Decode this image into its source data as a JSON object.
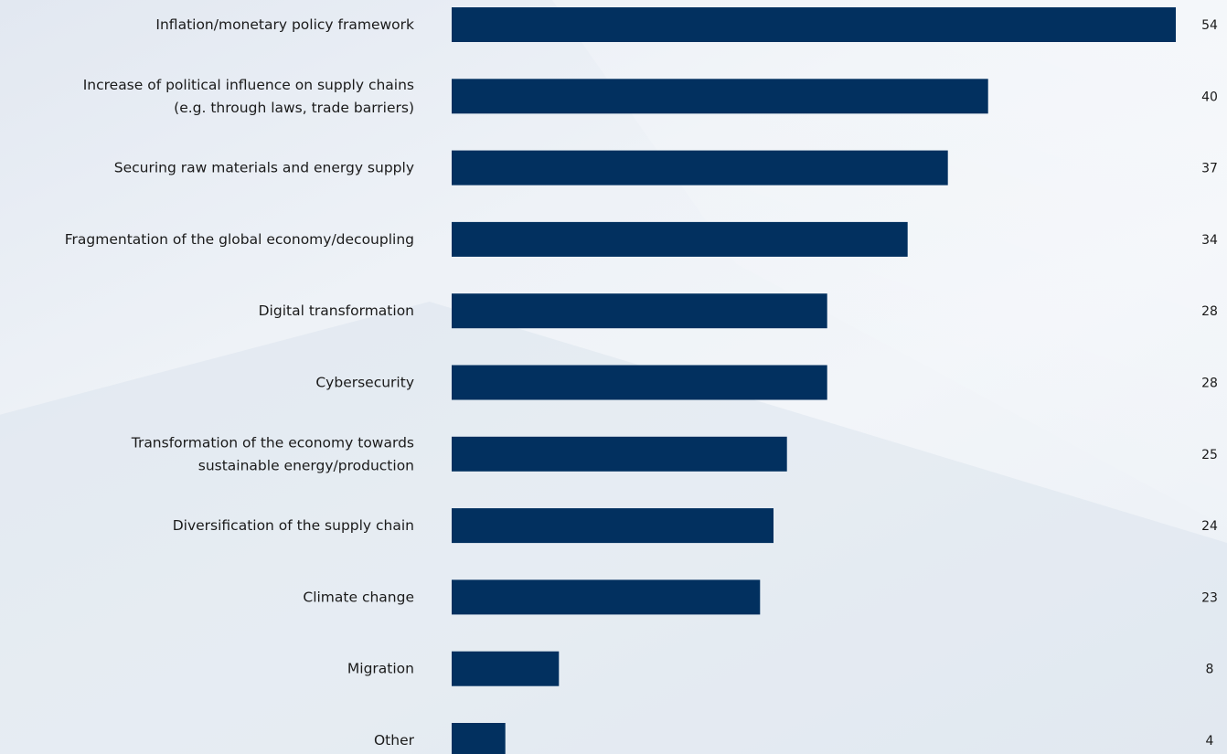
{
  "chart_data": {
    "type": "bar",
    "orientation": "horizontal",
    "categories": [
      [
        "Inflation/monetary policy framework"
      ],
      [
        "Increase of political influence on supply chains",
        "(e.g. through laws, trade barriers)"
      ],
      [
        "Securing raw materials and energy supply"
      ],
      [
        "Fragmentation of the global economy/decoupling"
      ],
      [
        "Digital transformation"
      ],
      [
        "Cybersecurity"
      ],
      [
        "Transformation of the economy towards",
        "sustainable energy/production"
      ],
      [
        "Diversification of the supply chain"
      ],
      [
        "Climate change"
      ],
      [
        "Migration"
      ],
      [
        "Other"
      ]
    ],
    "values": [
      54,
      40,
      37,
      34,
      28,
      28,
      25,
      24,
      23,
      8,
      4
    ],
    "value_labels": [
      "54",
      "40",
      "37",
      "34",
      "28",
      "28",
      "25",
      "24",
      "23",
      "8",
      "4"
    ],
    "xlim": [
      0,
      54
    ],
    "bar_color": "#02305f",
    "grid": false,
    "legend": "none"
  }
}
